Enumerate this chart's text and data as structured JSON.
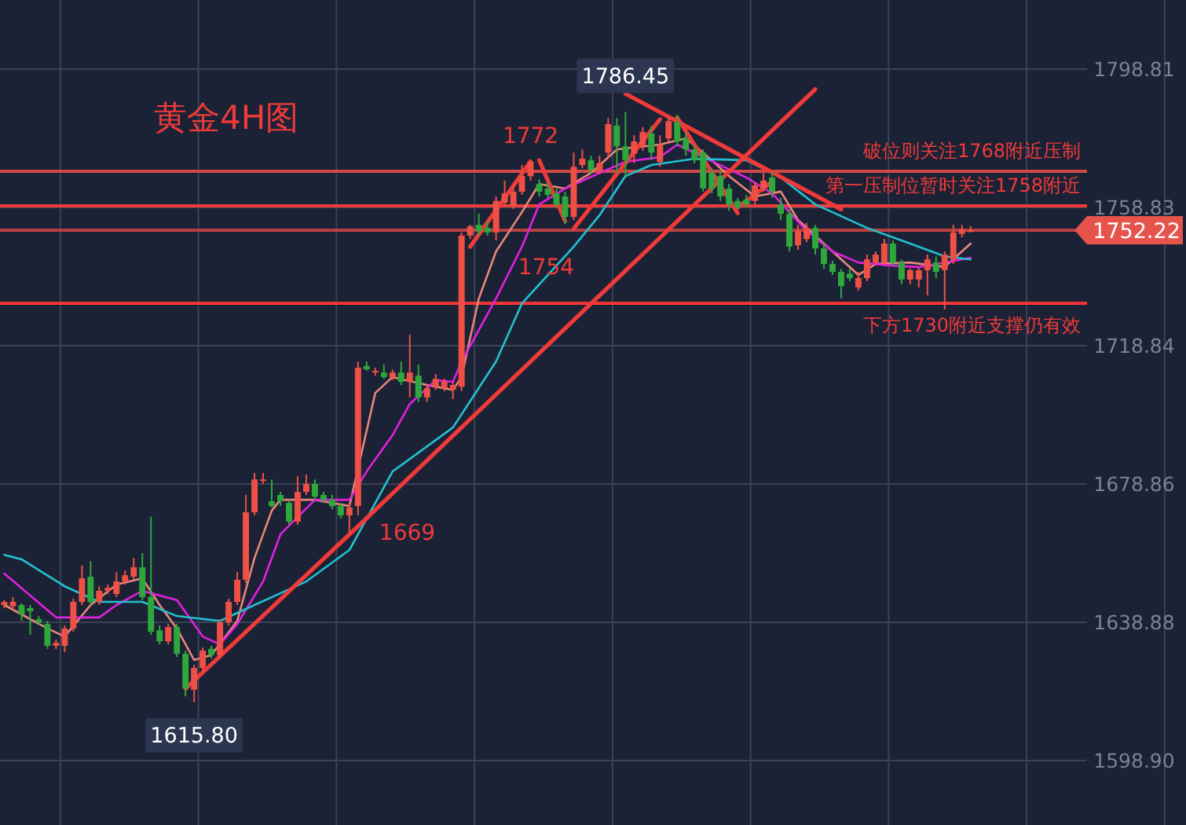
{
  "chart_data": {
    "type": "candlestick",
    "title": "黄金4H图",
    "categories": [
      null,
      null,
      null,
      null,
      null,
      null,
      null,
      null,
      null,
      null,
      null,
      null,
      null,
      null,
      null,
      null,
      null,
      null,
      null,
      null,
      null,
      null,
      null,
      null,
      null,
      null,
      null,
      null,
      null,
      null,
      null,
      null,
      null,
      null,
      null,
      null,
      null,
      null,
      null,
      null,
      null,
      null,
      null,
      null,
      null,
      null,
      null,
      null,
      null,
      null,
      null,
      null,
      null,
      null,
      null,
      null,
      null,
      null,
      null,
      null,
      null,
      null,
      null,
      null,
      null,
      null,
      null,
      null,
      null,
      null,
      null,
      null,
      null,
      null,
      null,
      null,
      null,
      null,
      null,
      null,
      null,
      null,
      null,
      null,
      null,
      null,
      null,
      null,
      null,
      null,
      null,
      null,
      null,
      null,
      null,
      null,
      null,
      null,
      null,
      null,
      null,
      null,
      null,
      null,
      null,
      null,
      null,
      null,
      null,
      null,
      null,
      null,
      null,
      null,
      null,
      null,
      null,
      null,
      null,
      null,
      null,
      null,
      null,
      null,
      null,
      null
    ],
    "ohlc": [
      [
        1643.9,
        1645.3,
        1643.0,
        1644.8
      ],
      [
        1643.5,
        1646.2,
        1642.5,
        1644.8
      ],
      [
        1643.9,
        1644.4,
        1639.3,
        1641.2
      ],
      [
        1643.0,
        1643.9,
        1635.3,
        1642.1
      ],
      [
        1639.8,
        1640.7,
        1638.0,
        1638.9
      ],
      [
        1638.4,
        1639.3,
        1631.2,
        1632.1
      ],
      [
        1632.1,
        1633.9,
        1631.2,
        1633.0
      ],
      [
        1632.1,
        1638.0,
        1630.3,
        1637.1
      ],
      [
        1637.1,
        1645.7,
        1636.2,
        1644.8
      ],
      [
        1644.8,
        1655.3,
        1643.9,
        1651.6
      ],
      [
        1652.1,
        1656.6,
        1643.9,
        1644.8
      ],
      [
        1644.8,
        1649.3,
        1643.9,
        1648.0
      ],
      [
        1648.0,
        1649.8,
        1647.1,
        1648.9
      ],
      [
        1647.1,
        1653.4,
        1646.2,
        1650.7
      ],
      [
        1650.7,
        1653.9,
        1649.8,
        1652.5
      ],
      [
        1652.1,
        1657.5,
        1651.2,
        1654.8
      ],
      [
        1654.8,
        1658.9,
        1645.3,
        1646.2
      ],
      [
        1646.2,
        1669.4,
        1635.3,
        1636.2
      ],
      [
        1636.6,
        1638.0,
        1632.5,
        1633.4
      ],
      [
        1633.4,
        1638.4,
        1632.5,
        1637.5
      ],
      [
        1637.5,
        1638.4,
        1628.9,
        1629.8
      ],
      [
        1629.8,
        1630.7,
        1617.5,
        1619.8
      ],
      [
        1619.4,
        1626.6,
        1615.8,
        1625.7
      ],
      [
        1625.7,
        1631.6,
        1624.4,
        1630.7
      ],
      [
        1631.2,
        1632.1,
        1628.4,
        1629.4
      ],
      [
        1629.4,
        1639.8,
        1628.4,
        1638.9
      ],
      [
        1638.9,
        1645.7,
        1638.0,
        1644.8
      ],
      [
        1644.8,
        1653.4,
        1643.9,
        1651.2
      ],
      [
        1651.2,
        1675.7,
        1650.3,
        1670.7
      ],
      [
        1670.7,
        1682.1,
        1669.8,
        1680.2
      ],
      [
        1679.8,
        1682.1,
        1678.9,
        1680.2
      ],
      [
        1673.9,
        1680.2,
        1672.1,
        1672.5
      ],
      [
        1675.7,
        1676.6,
        1672.5,
        1673.9
      ],
      [
        1673.4,
        1674.3,
        1667.1,
        1668.0
      ],
      [
        1668.0,
        1681.1,
        1667.1,
        1676.6
      ],
      [
        1676.6,
        1681.6,
        1675.7,
        1678.9
      ],
      [
        1678.9,
        1680.2,
        1674.3,
        1675.2
      ],
      [
        1675.7,
        1676.6,
        1673.4,
        1674.3
      ],
      [
        1674.3,
        1675.7,
        1671.6,
        1672.5
      ],
      [
        1672.5,
        1673.4,
        1668.9,
        1669.8
      ],
      [
        1669.8,
        1673.0,
        1664.8,
        1672.1
      ],
      [
        1672.5,
        1714.3,
        1669.8,
        1712.5
      ],
      [
        1713.0,
        1714.3,
        1711.6,
        1712.0
      ],
      [
        1711.4,
        1712.5,
        1710.2,
        1711.6
      ],
      [
        1711.1,
        1713.4,
        1709.3,
        1709.8
      ],
      [
        1709.8,
        1712.0,
        1708.9,
        1711.1
      ],
      [
        1711.1,
        1714.3,
        1707.5,
        1708.4
      ],
      [
        1708.4,
        1722.0,
        1703.9,
        1711.1
      ],
      [
        1710.2,
        1713.4,
        1702.6,
        1703.9
      ],
      [
        1703.9,
        1707.5,
        1702.6,
        1706.6
      ],
      [
        1707.0,
        1710.6,
        1706.1,
        1709.3
      ],
      [
        1706.6,
        1709.3,
        1705.7,
        1708.4
      ],
      [
        1706.1,
        1708.4,
        1703.4,
        1707.5
      ],
      [
        1707.0,
        1751.6,
        1705.7,
        1750.7
      ],
      [
        1750.7,
        1753.8,
        1749.7,
        1753.4
      ],
      [
        1753.8,
        1757.0,
        1750.7,
        1752.0
      ],
      [
        1752.9,
        1754.8,
        1750.7,
        1751.6
      ],
      [
        1751.6,
        1762.0,
        1749.3,
        1760.7
      ],
      [
        1760.2,
        1766.6,
        1759.3,
        1762.9
      ],
      [
        1759.3,
        1764.7,
        1758.4,
        1763.4
      ],
      [
        1763.4,
        1771.1,
        1762.5,
        1767.9
      ],
      [
        1767.9,
        1772.0,
        1766.6,
        1772.0
      ],
      [
        1765.6,
        1767.0,
        1762.0,
        1763.4
      ],
      [
        1764.3,
        1766.1,
        1761.6,
        1762.5
      ],
      [
        1762.9,
        1764.3,
        1758.8,
        1759.7
      ],
      [
        1762.0,
        1763.4,
        1754.0,
        1756.1
      ],
      [
        1756.1,
        1774.7,
        1755.2,
        1770.6
      ],
      [
        1771.1,
        1775.6,
        1770.2,
        1772.9
      ],
      [
        1772.5,
        1773.8,
        1768.4,
        1769.7
      ],
      [
        1769.3,
        1773.8,
        1768.4,
        1771.6
      ],
      [
        1774.7,
        1784.7,
        1773.4,
        1782.9
      ],
      [
        1782.5,
        1784.7,
        1768.8,
        1776.5
      ],
      [
        1776.5,
        1786.45,
        1767.9,
        1772.5
      ],
      [
        1774.3,
        1779.7,
        1771.6,
        1777.9
      ],
      [
        1776.5,
        1782.0,
        1775.2,
        1780.6
      ],
      [
        1780.2,
        1782.5,
        1772.5,
        1774.7
      ],
      [
        1772.0,
        1779.7,
        1770.6,
        1776.9
      ],
      [
        1778.8,
        1785.2,
        1777.9,
        1783.8
      ],
      [
        1783.4,
        1785.6,
        1776.5,
        1777.9
      ],
      [
        1778.8,
        1780.6,
        1773.8,
        1775.6
      ],
      [
        1775.6,
        1777.0,
        1771.6,
        1772.5
      ],
      [
        1774.7,
        1775.6,
        1763.4,
        1764.3
      ],
      [
        1768.8,
        1770.2,
        1762.9,
        1764.3
      ],
      [
        1767.9,
        1769.3,
        1760.7,
        1762.0
      ],
      [
        1764.3,
        1765.6,
        1757.9,
        1759.7
      ],
      [
        1760.7,
        1761.6,
        1758.4,
        1758.8
      ],
      [
        1761.1,
        1762.5,
        1758.8,
        1759.7
      ],
      [
        1760.7,
        1766.1,
        1759.7,
        1765.2
      ],
      [
        1764.3,
        1768.8,
        1763.4,
        1766.6
      ],
      [
        1767.5,
        1769.3,
        1761.6,
        1763.4
      ],
      [
        1759.7,
        1761.6,
        1755.2,
        1757.0
      ],
      [
        1757.0,
        1758.4,
        1746.1,
        1747.5
      ],
      [
        1747.9,
        1753.8,
        1746.6,
        1752.0
      ],
      [
        1749.7,
        1754.3,
        1748.8,
        1752.9
      ],
      [
        1752.9,
        1753.8,
        1745.2,
        1747.0
      ],
      [
        1747.0,
        1748.4,
        1741.1,
        1742.5
      ],
      [
        1742.5,
        1743.4,
        1739.3,
        1740.2
      ],
      [
        1740.2,
        1741.1,
        1732.5,
        1736.1
      ],
      [
        1739.7,
        1741.1,
        1737.5,
        1738.4
      ],
      [
        1735.7,
        1740.2,
        1734.8,
        1738.4
      ],
      [
        1738.4,
        1745.2,
        1737.5,
        1743.8
      ],
      [
        1742.9,
        1746.1,
        1742.0,
        1745.2
      ],
      [
        1742.9,
        1749.7,
        1742.0,
        1748.4
      ],
      [
        1748.4,
        1749.3,
        1742.0,
        1742.9
      ],
      [
        1742.9,
        1743.8,
        1736.6,
        1738.0
      ],
      [
        1738.0,
        1741.1,
        1736.6,
        1740.7
      ],
      [
        1738.0,
        1741.6,
        1735.7,
        1740.7
      ],
      [
        1740.7,
        1745.2,
        1733.4,
        1743.8
      ],
      [
        1742.9,
        1744.7,
        1738.4,
        1740.2
      ],
      [
        1740.7,
        1746.1,
        1729.3,
        1745.2
      ],
      [
        1743.8,
        1753.8,
        1742.5,
        1751.6
      ],
      [
        1751.2,
        1753.8,
        1750.2,
        1752.5
      ],
      [
        1752.0,
        1753.4,
        1751.6,
        1752.22
      ],
      null,
      null,
      null,
      null,
      null,
      null,
      null,
      null,
      null,
      null,
      null,
      null,
      null
    ],
    "series": [
      {
        "type": "line",
        "color": "#e8867a",
        "values": [
          1643.9,
          null,
          null,
          null,
          null,
          1637.1,
          null,
          1634.8,
          null,
          null,
          1643.9,
          null,
          null,
          1649.8,
          null,
          null,
          1651.6,
          null,
          1643.9,
          null,
          1637.1,
          null,
          1628.0,
          null,
          1629.4,
          null,
          null,
          1639.3,
          null,
          1657.5,
          null,
          1671.2,
          1674.3,
          null,
          null,
          null,
          1674.3,
          null,
          null,
          null,
          1672.5,
          null,
          null,
          1705.2,
          null,
          1709.8,
          null,
          null,
          null,
          1707.5,
          null,
          null,
          1706.1,
          1709.8,
          null,
          1732.5,
          null,
          1746.1,
          null,
          null,
          1757.5,
          null,
          1765.6,
          null,
          null,
          1764.3,
          null,
          null,
          1768.8,
          null,
          null,
          1775.6,
          null,
          null,
          null,
          null,
          1777.0,
          null,
          null,
          1778.8,
          null,
          1774.7,
          null,
          null,
          1767.9,
          null,
          null,
          1762.0,
          null,
          null,
          1763.4,
          null,
          1755.2,
          null,
          null,
          null,
          1746.1,
          null,
          null,
          1739.3,
          null,
          1742.5,
          null,
          null,
          null,
          1742.9,
          null,
          null,
          null,
          1741.6,
          null,
          null,
          1748.4,
          null,
          null,
          null,
          null,
          null,
          null,
          null,
          null,
          null,
          null,
          null,
          null,
          null
        ]
      },
      {
        "type": "line",
        "color": "#e020e0",
        "values": [
          1653.0,
          null,
          null,
          null,
          null,
          null,
          1640.3,
          null,
          null,
          null,
          null,
          1640.3,
          null,
          1643.9,
          null,
          null,
          1648.0,
          null,
          null,
          null,
          1645.3,
          null,
          null,
          1634.8,
          null,
          1632.5,
          null,
          1638.4,
          null,
          null,
          1650.7,
          null,
          1664.3,
          null,
          null,
          null,
          1674.3,
          null,
          null,
          null,
          1674.3,
          null,
          1682.5,
          null,
          null,
          1693.0,
          null,
          1702.0,
          null,
          null,
          1708.9,
          null,
          1708.4,
          1714.3,
          null,
          null,
          null,
          1732.5,
          null,
          null,
          1747.5,
          null,
          1759.7,
          null,
          null,
          1764.3,
          null,
          null,
          null,
          1768.8,
          null,
          null,
          1772.0,
          null,
          null,
          null,
          1773.4,
          null,
          1777.0,
          null,
          null,
          1773.4,
          null,
          null,
          null,
          null,
          1767.5,
          null,
          null,
          1762.9,
          null,
          null,
          null,
          1752.0,
          null,
          null,
          1746.1,
          null,
          null,
          1742.9,
          null,
          null,
          null,
          1742.0,
          null,
          null,
          1741.6,
          null,
          null,
          1742.9,
          null,
          null,
          1744.3,
          null,
          null,
          null,
          null,
          null,
          null,
          null,
          null,
          null,
          null,
          null,
          null,
          null
        ]
      },
      {
        "type": "line",
        "color": "#22c0d0",
        "values": [
          1658.4,
          null,
          1657.1,
          null,
          null,
          null,
          null,
          1649.3,
          null,
          null,
          null,
          1644.8,
          null,
          null,
          null,
          null,
          1644.8,
          null,
          null,
          null,
          1640.7,
          null,
          null,
          null,
          null,
          1639.3,
          null,
          null,
          null,
          1643.9,
          null,
          null,
          null,
          null,
          null,
          1650.7,
          null,
          null,
          null,
          null,
          1659.8,
          null,
          null,
          null,
          null,
          1682.5,
          null,
          null,
          null,
          null,
          null,
          null,
          1695.2,
          null,
          null,
          null,
          null,
          1714.3,
          null,
          null,
          1731.1,
          null,
          null,
          null,
          null,
          null,
          1747.5,
          null,
          null,
          1756.6,
          null,
          null,
          1767.9,
          null,
          null,
          1771.1,
          null,
          null,
          null,
          null,
          1772.9,
          null,
          null,
          null,
          null,
          null,
          1772.5,
          null,
          null,
          null,
          1767.5,
          null,
          null,
          null,
          1759.7,
          null,
          null,
          null,
          null,
          null,
          1752.9,
          null,
          null,
          null,
          null,
          1748.4,
          null,
          null,
          null,
          1744.7,
          null,
          null,
          1743.8,
          null,
          null,
          null,
          null,
          null,
          null,
          null,
          null,
          null,
          null,
          null,
          null,
          null
        ]
      },
      {
        "type": "line",
        "color": "#f03a3a",
        "values": [
          null,
          null,
          null,
          null,
          null,
          null,
          null,
          null,
          null,
          null,
          null,
          null,
          null,
          null,
          null,
          null,
          null,
          null,
          null,
          null,
          null,
          1619.7,
          null,
          null,
          null,
          null,
          null,
          null,
          null,
          null,
          null,
          null,
          null,
          null,
          null,
          null,
          null,
          null,
          null,
          null,
          null,
          null,
          1669,
          null,
          null,
          null,
          null,
          null,
          null,
          null,
          null,
          null,
          null,
          null,
          null,
          null,
          null,
          null,
          null,
          null,
          null,
          null,
          null,
          null,
          null,
          null,
          null,
          null,
          null,
          null,
          null,
          null,
          null,
          null,
          null,
          null,
          null,
          null,
          null,
          null,
          null,
          null,
          null,
          null,
          null,
          null,
          null,
          null,
          null,
          null,
          null,
          null,
          null,
          null,
          1793.0,
          null,
          null,
          null,
          null,
          null,
          null,
          null,
          null,
          null,
          null,
          null,
          null,
          null,
          null,
          null,
          null,
          null,
          null,
          null,
          null,
          null,
          null,
          null,
          null,
          null,
          null,
          null,
          null,
          null,
          null,
          null
        ]
      },
      {
        "type": "line",
        "color": "#f03a3a",
        "values": [
          null,
          null,
          null,
          null,
          null,
          null,
          null,
          null,
          null,
          null,
          null,
          null,
          null,
          null,
          null,
          null,
          null,
          null,
          null,
          null,
          null,
          null,
          null,
          null,
          null,
          null,
          null,
          null,
          null,
          null,
          null,
          null,
          null,
          null,
          null,
          null,
          null,
          null,
          null,
          null,
          null,
          null,
          null,
          null,
          null,
          null,
          null,
          null,
          null,
          null,
          null,
          null,
          null,
          null,
          1747.5,
          null,
          null,
          null,
          null,
          null,
          null,
          1772.1,
          null,
          null,
          null,
          null,
          null,
          null,
          null,
          null,
          null,
          null,
          null,
          null,
          null,
          null,
          null,
          null,
          null,
          null,
          null,
          null,
          null,
          null,
          null,
          null,
          null,
          null,
          null,
          null,
          null,
          null,
          null,
          null,
          null,
          null,
          null,
          null,
          null,
          null,
          null,
          null,
          null,
          null,
          null,
          null,
          null,
          null,
          null,
          null,
          null,
          null,
          null,
          null,
          null,
          null,
          null,
          null,
          null,
          null,
          null,
          null,
          null,
          null,
          null,
          null
        ]
      },
      {
        "type": "line",
        "color": "#f03a3a",
        "values": [
          null,
          null,
          null,
          null,
          null,
          null,
          null,
          null,
          null,
          null,
          null,
          null,
          null,
          null,
          null,
          null,
          null,
          null,
          null,
          null,
          null,
          null,
          null,
          null,
          null,
          null,
          null,
          null,
          null,
          null,
          null,
          null,
          null,
          null,
          null,
          null,
          null,
          null,
          null,
          null,
          null,
          null,
          null,
          null,
          null,
          null,
          null,
          null,
          null,
          null,
          null,
          null,
          null,
          null,
          null,
          null,
          null,
          null,
          null,
          null,
          null,
          null,
          1772.5,
          null,
          null,
          1754.9,
          null,
          null,
          null,
          null,
          null,
          null,
          null,
          null,
          null,
          null,
          null,
          null,
          null,
          null,
          null,
          null,
          null,
          null,
          null,
          null,
          null,
          null,
          null,
          null,
          null,
          null,
          null,
          null,
          null,
          null,
          null,
          null,
          null,
          null,
          null,
          null,
          null,
          null,
          null,
          null,
          null,
          null,
          null,
          null,
          null,
          null,
          null,
          null,
          null,
          null,
          null,
          null,
          null,
          null,
          null,
          null,
          null,
          null,
          null,
          null
        ]
      },
      {
        "type": "line",
        "color": "#f03a3a",
        "values": [
          null,
          null,
          null,
          null,
          null,
          null,
          null,
          null,
          null,
          null,
          null,
          null,
          null,
          null,
          null,
          null,
          null,
          null,
          null,
          null,
          null,
          null,
          null,
          null,
          null,
          null,
          null,
          null,
          null,
          null,
          null,
          null,
          null,
          null,
          null,
          null,
          null,
          null,
          null,
          null,
          null,
          null,
          null,
          null,
          null,
          null,
          null,
          null,
          null,
          null,
          null,
          null,
          null,
          null,
          null,
          null,
          null,
          null,
          null,
          null,
          null,
          null,
          null,
          null,
          null,
          null,
          1752.7,
          null,
          null,
          null,
          null,
          null,
          null,
          null,
          null,
          null,
          1784.3,
          null,
          null,
          null,
          null,
          null,
          null,
          null,
          null,
          null,
          null,
          null,
          null,
          null,
          null,
          null,
          null,
          null,
          null,
          null,
          null,
          null,
          null,
          null,
          null,
          null,
          null,
          null,
          null,
          null,
          null,
          null,
          null,
          null,
          null,
          null,
          null,
          null,
          null,
          null,
          null,
          null,
          null,
          null,
          null,
          null,
          null,
          null,
          null,
          null
        ]
      },
      {
        "type": "line",
        "color": "#f03a3a",
        "values": [
          null,
          null,
          null,
          null,
          null,
          null,
          null,
          null,
          null,
          null,
          null,
          null,
          null,
          null,
          null,
          null,
          null,
          null,
          null,
          null,
          null,
          null,
          null,
          null,
          null,
          null,
          null,
          null,
          null,
          null,
          null,
          null,
          null,
          null,
          null,
          null,
          null,
          null,
          null,
          null,
          null,
          null,
          null,
          null,
          null,
          null,
          null,
          null,
          null,
          null,
          null,
          null,
          null,
          null,
          null,
          null,
          null,
          null,
          null,
          null,
          null,
          null,
          null,
          null,
          null,
          null,
          null,
          null,
          null,
          null,
          null,
          null,
          1791.7,
          null,
          null,
          null,
          null,
          null,
          null,
          null,
          null,
          null,
          null,
          null,
          null,
          null,
          null,
          null,
          null,
          null,
          null,
          null,
          null,
          null,
          null,
          null,
          null,
          1758.3,
          null,
          null,
          null,
          null,
          null,
          null,
          null,
          null,
          null,
          null,
          null,
          null,
          null,
          null,
          null,
          null,
          null,
          null,
          null,
          null,
          null,
          null,
          null,
          null,
          null,
          null,
          null,
          null
        ]
      },
      {
        "type": "line",
        "color": "#f03a3a",
        "values": [
          null,
          null,
          null,
          null,
          null,
          null,
          null,
          null,
          null,
          null,
          null,
          null,
          null,
          null,
          null,
          null,
          null,
          null,
          null,
          null,
          null,
          null,
          null,
          null,
          null,
          null,
          null,
          null,
          null,
          null,
          null,
          null,
          null,
          null,
          null,
          null,
          null,
          null,
          null,
          null,
          null,
          null,
          null,
          null,
          null,
          null,
          null,
          null,
          null,
          null,
          null,
          null,
          null,
          null,
          null,
          null,
          null,
          null,
          null,
          null,
          null,
          null,
          null,
          null,
          null,
          null,
          null,
          null,
          null,
          null,
          null,
          null,
          null,
          null,
          null,
          null,
          null,
          null,
          1784.8,
          null,
          null,
          null,
          null,
          null,
          null,
          1757.2,
          null,
          null,
          null,
          null,
          null,
          null,
          null,
          null,
          null,
          null,
          null,
          null,
          null,
          null,
          null,
          null,
          null,
          null,
          null,
          null,
          null,
          null,
          null,
          null,
          null,
          null,
          null,
          null,
          null,
          null,
          null,
          null,
          null,
          null,
          null,
          null,
          null,
          null,
          null,
          null
        ]
      },
      {
        "type": "line",
        "color": "#f03a3a",
        "values": [
          null,
          null,
          null,
          null,
          null,
          null,
          null,
          null,
          null,
          null,
          null,
          null,
          null,
          null,
          null,
          null,
          null,
          null,
          null,
          null,
          null,
          null,
          null,
          null,
          null,
          null,
          null,
          null,
          null,
          null,
          null,
          null,
          null,
          null,
          null,
          null,
          null,
          null,
          null,
          null,
          null,
          null,
          null,
          null,
          null,
          null,
          null,
          null,
          null,
          null,
          null,
          null,
          null,
          null,
          null,
          null,
          null,
          null,
          null,
          null,
          null,
          null,
          null,
          null,
          null,
          null,
          null,
          null,
          null,
          null,
          null,
          null,
          null,
          null,
          null,
          null,
          null,
          null,
          null,
          null,
          null,
          null,
          null,
          null,
          null,
          1758.8,
          null,
          null,
          null,
          1766.3,
          null,
          null,
          null,
          null,
          null,
          null,
          null,
          null,
          null,
          null,
          null,
          null,
          null,
          null,
          null,
          null,
          null,
          null,
          null,
          null,
          null,
          null,
          null,
          null,
          null,
          null,
          null,
          null,
          null,
          null,
          null,
          null,
          null,
          null,
          null,
          null
        ]
      }
    ],
    "ylim": [
      1580.3,
      1818.8
    ],
    "yticks": [
      1798.81,
      1758.83,
      1718.84,
      1678.86,
      1638.88,
      {
        "value": 1598.9,
        "label": "1598.90"
      }
    ],
    "tick_labels": "y",
    "grid": true,
    "ref_lines": [
      {
        "axis": "y",
        "value": 1769.3,
        "label": "破位则关注1768附近压制",
        "color": "#d04848"
      },
      {
        "axis": "y",
        "value": 1759.3,
        "label": "第一压制位暂时关注1758附近",
        "color": "#f23c3c"
      },
      {
        "axis": "y",
        "value": 1731.1,
        "label": "下方1730附近支撑仍有效",
        "color": "#f53535"
      },
      {
        "axis": "y",
        "value": 1752.22,
        "label": "1752.22",
        "color": "#b84040"
      }
    ],
    "annotations": [
      "1786.45",
      "1615.80",
      {
        "text": "1772",
        "y": 1772.0
      },
      {
        "text": "1754",
        "y": 1754.0
      },
      "1669"
    ]
  }
}
